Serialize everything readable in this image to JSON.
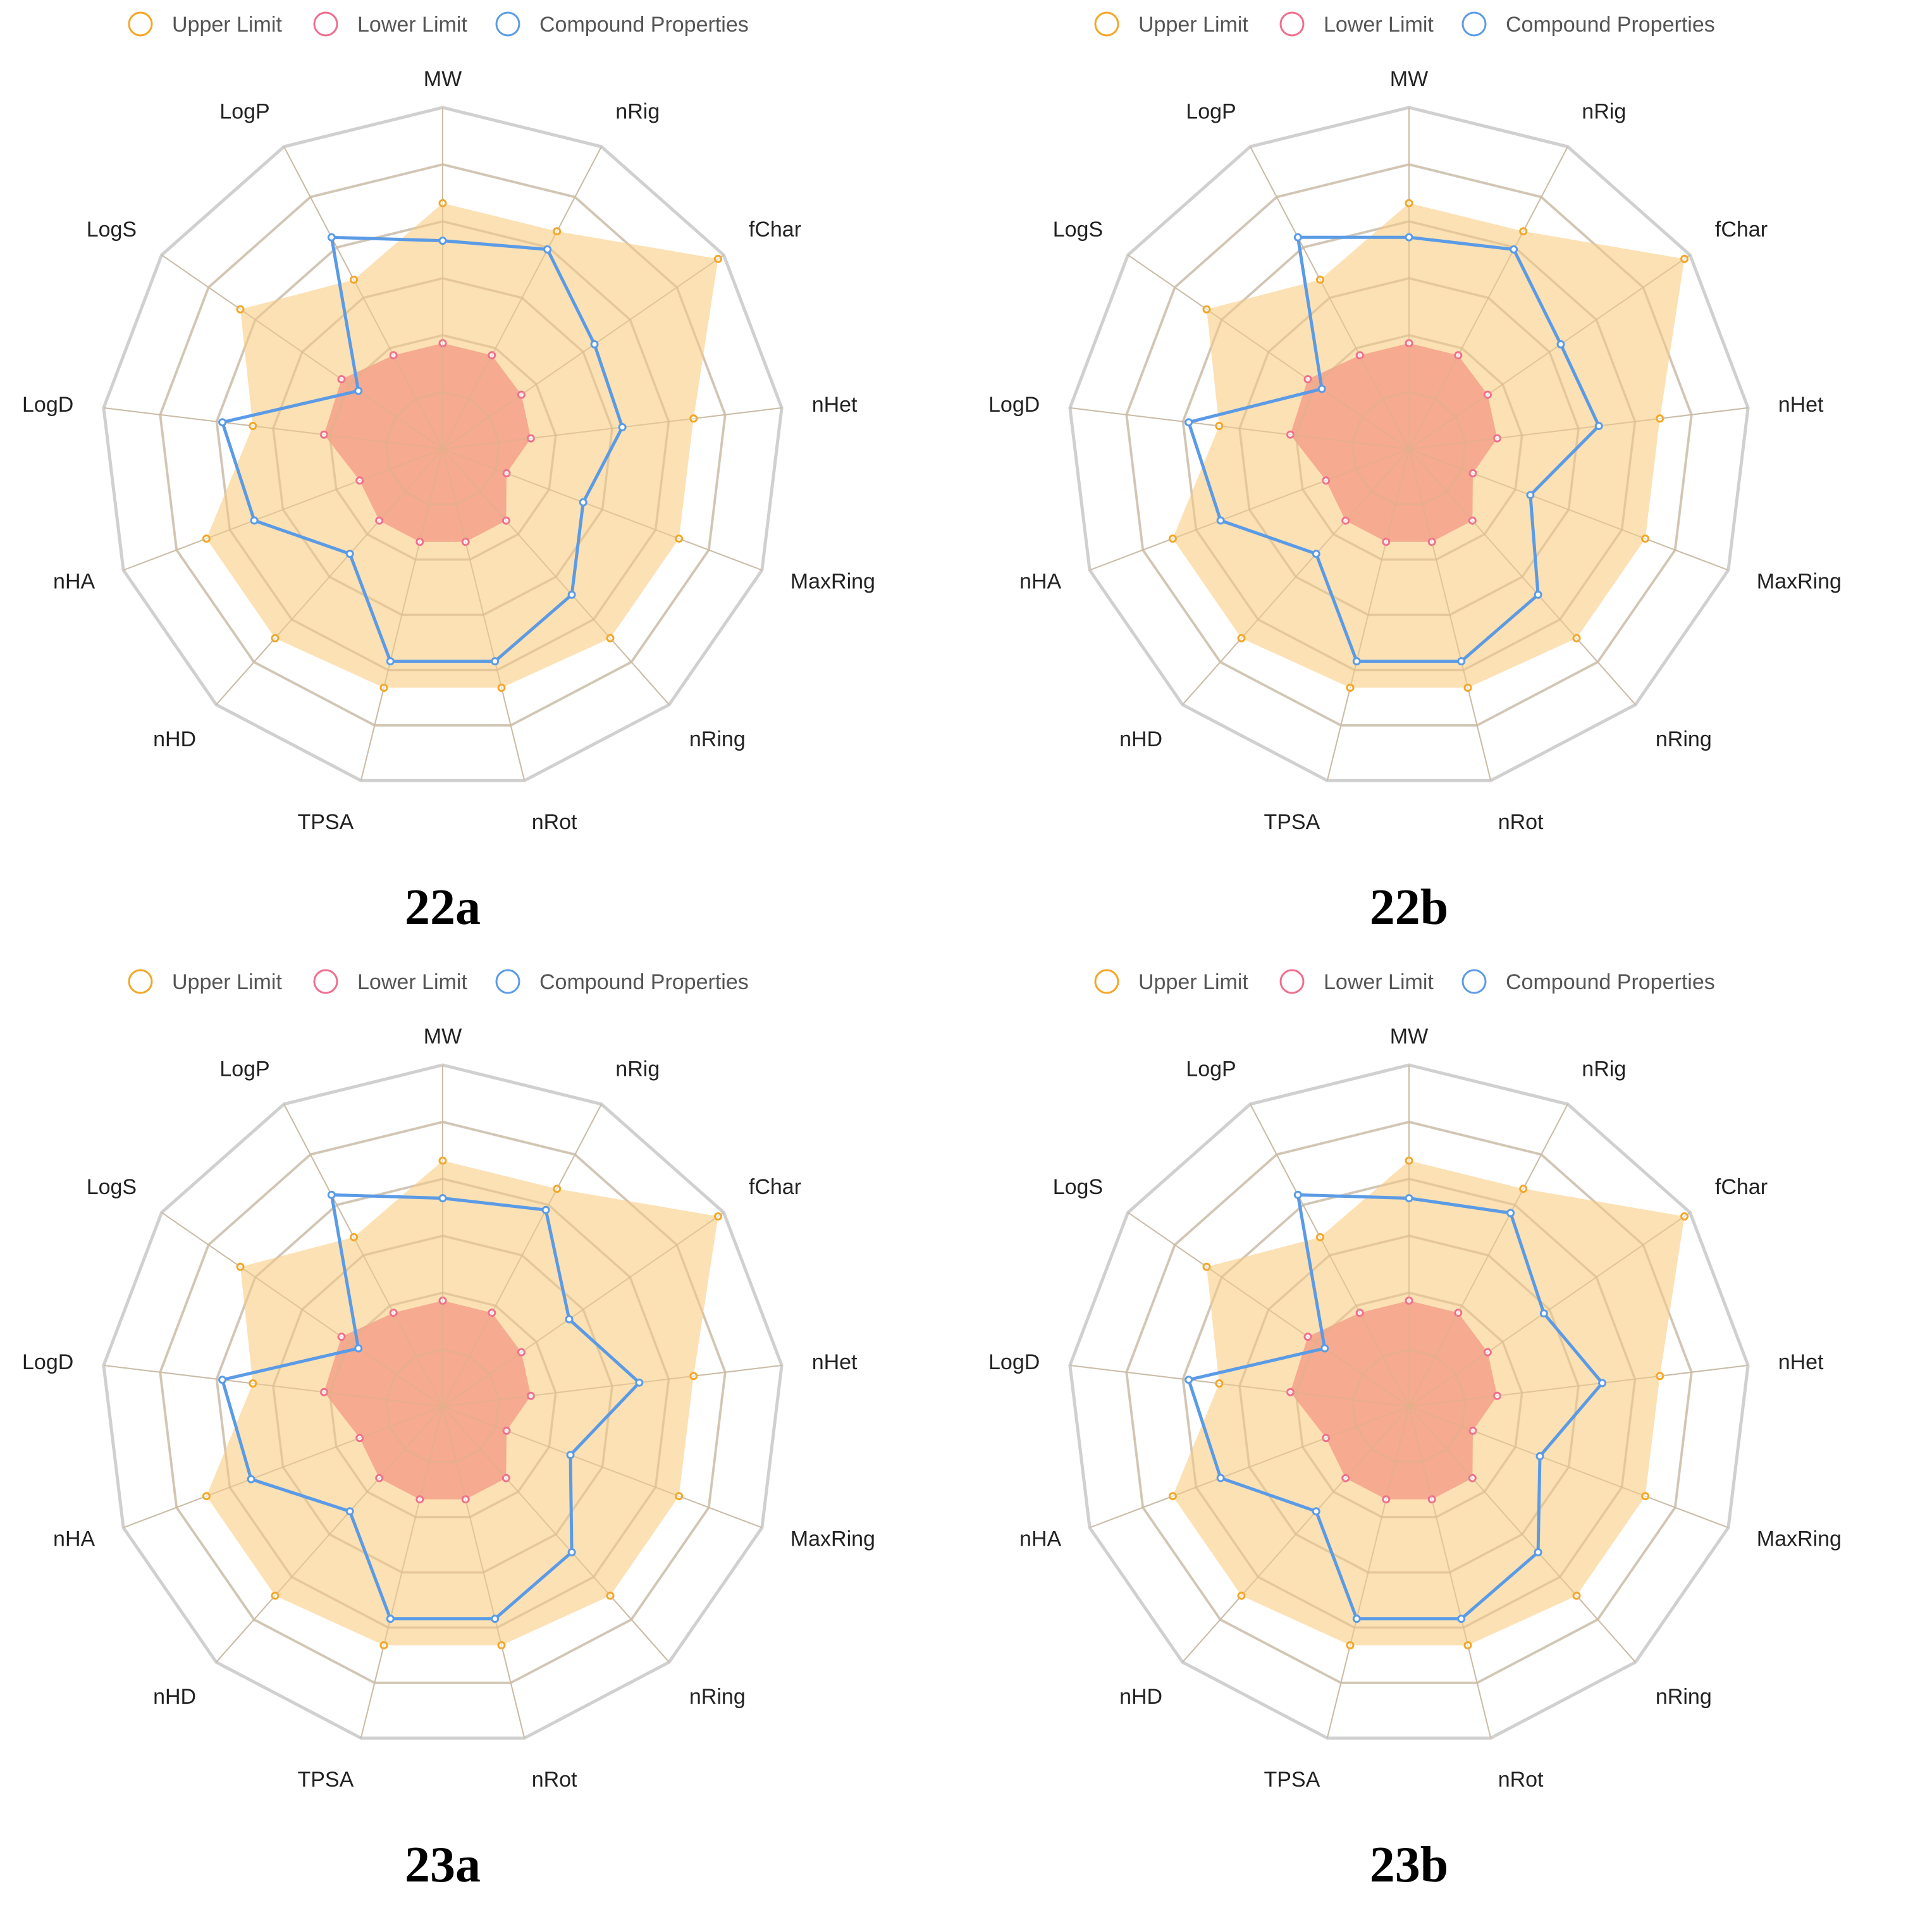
{
  "legend": {
    "upper_label": "Upper Limit",
    "lower_label": "Lower Limit",
    "compound_label": "Compound Properties"
  },
  "colors": {
    "upper": "#f5a623",
    "upper_fill": "#fbd597",
    "lower": "#f06e8e",
    "lower_fill": "#f4a08a",
    "compound": "#5b9be6",
    "grid": "#d0d0d0",
    "spoke": "#bfbfbf",
    "inner_grid": "#d9b98a"
  },
  "chart_data": [
    {
      "type": "radar",
      "title": "22a",
      "axes": [
        "MW",
        "nRig",
        "fChar",
        "nHet",
        "MaxRing",
        "nRing",
        "nRot",
        "TPSA",
        "nHD",
        "nHA",
        "LogD",
        "LogS",
        "LogP"
      ],
      "scale_max": 1,
      "rings": 6,
      "series": [
        {
          "name": "Upper Limit",
          "values": [
            0.72,
            0.72,
            0.98,
            0.74,
            0.74,
            0.74,
            0.72,
            0.72,
            0.74,
            0.74,
            0.56,
            0.72,
            0.56
          ]
        },
        {
          "name": "Lower Limit",
          "values": [
            0.31,
            0.31,
            0.28,
            0.26,
            0.2,
            0.28,
            0.28,
            0.28,
            0.28,
            0.26,
            0.35,
            0.36,
            0.31
          ]
        },
        {
          "name": "Compound Properties",
          "values": [
            0.61,
            0.66,
            0.54,
            0.53,
            0.44,
            0.57,
            0.64,
            0.64,
            0.41,
            0.59,
            0.65,
            0.3,
            0.7
          ]
        }
      ]
    },
    {
      "type": "radar",
      "title": "22b",
      "axes": [
        "MW",
        "nRig",
        "fChar",
        "nHet",
        "MaxRing",
        "nRing",
        "nRot",
        "TPSA",
        "nHD",
        "nHA",
        "LogD",
        "LogS",
        "LogP"
      ],
      "scale_max": 1,
      "rings": 6,
      "series": [
        {
          "name": "Upper Limit",
          "values": [
            0.72,
            0.72,
            0.98,
            0.74,
            0.74,
            0.74,
            0.72,
            0.72,
            0.74,
            0.74,
            0.56,
            0.72,
            0.56
          ]
        },
        {
          "name": "Lower Limit",
          "values": [
            0.31,
            0.31,
            0.28,
            0.26,
            0.2,
            0.28,
            0.28,
            0.28,
            0.28,
            0.26,
            0.35,
            0.36,
            0.31
          ]
        },
        {
          "name": "Compound Properties",
          "values": [
            0.62,
            0.66,
            0.54,
            0.56,
            0.38,
            0.57,
            0.64,
            0.64,
            0.41,
            0.59,
            0.65,
            0.31,
            0.7
          ]
        }
      ]
    },
    {
      "type": "radar",
      "title": "23a",
      "axes": [
        "MW",
        "nRig",
        "fChar",
        "nHet",
        "MaxRing",
        "nRing",
        "nRot",
        "TPSA",
        "nHD",
        "nHA",
        "LogD",
        "LogS",
        "LogP"
      ],
      "scale_max": 1,
      "rings": 6,
      "series": [
        {
          "name": "Upper Limit",
          "values": [
            0.72,
            0.72,
            0.98,
            0.74,
            0.74,
            0.74,
            0.72,
            0.72,
            0.74,
            0.74,
            0.56,
            0.72,
            0.56
          ]
        },
        {
          "name": "Lower Limit",
          "values": [
            0.31,
            0.31,
            0.28,
            0.26,
            0.2,
            0.28,
            0.28,
            0.28,
            0.28,
            0.26,
            0.35,
            0.36,
            0.31
          ]
        },
        {
          "name": "Compound Properties",
          "values": [
            0.61,
            0.65,
            0.45,
            0.58,
            0.4,
            0.57,
            0.64,
            0.64,
            0.41,
            0.6,
            0.65,
            0.3,
            0.7
          ]
        }
      ]
    },
    {
      "type": "radar",
      "title": "23b",
      "axes": [
        "MW",
        "nRig",
        "fChar",
        "nHet",
        "MaxRing",
        "nRing",
        "nRot",
        "TPSA",
        "nHD",
        "nHA",
        "LogD",
        "LogS",
        "LogP"
      ],
      "scale_max": 1,
      "rings": 6,
      "series": [
        {
          "name": "Upper Limit",
          "values": [
            0.72,
            0.72,
            0.98,
            0.74,
            0.74,
            0.74,
            0.72,
            0.72,
            0.74,
            0.74,
            0.56,
            0.72,
            0.56
          ]
        },
        {
          "name": "Lower Limit",
          "values": [
            0.31,
            0.31,
            0.28,
            0.26,
            0.2,
            0.28,
            0.28,
            0.28,
            0.28,
            0.26,
            0.35,
            0.36,
            0.31
          ]
        },
        {
          "name": "Compound Properties",
          "values": [
            0.61,
            0.64,
            0.48,
            0.57,
            0.41,
            0.57,
            0.64,
            0.64,
            0.41,
            0.59,
            0.65,
            0.3,
            0.7
          ]
        }
      ]
    }
  ]
}
